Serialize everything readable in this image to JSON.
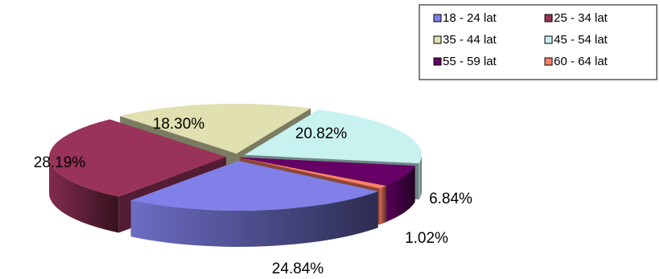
{
  "chart_data": {
    "type": "pie",
    "style": "3d-exploded",
    "title": "",
    "slices": [
      {
        "label": "18 - 24 lat",
        "value": 24.84,
        "display": "24.84%",
        "color": "#8080E8"
      },
      {
        "label": "25 - 34 lat",
        "value": 28.19,
        "display": "28.19%",
        "color": "#99335A"
      },
      {
        "label": "35 - 44 lat",
        "value": 18.3,
        "display": "18.30%",
        "color": "#E0E0B0"
      },
      {
        "label": "45 - 54 lat",
        "value": 20.82,
        "display": "20.82%",
        "color": "#C8F2F0"
      },
      {
        "label": "55 - 59 lat",
        "value": 6.84,
        "display": "6.84%",
        "color": "#660066"
      },
      {
        "label": "60 - 64 lat",
        "value": 1.02,
        "display": "1.02%",
        "color": "#FF8066"
      }
    ],
    "legend": {
      "placement": "top-right",
      "columns": 2
    }
  }
}
